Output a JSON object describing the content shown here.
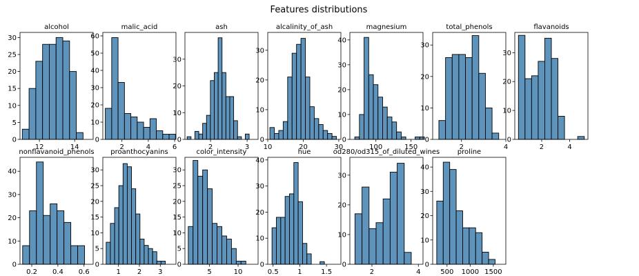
{
  "figure": {
    "suptitle": "Features distributions"
  },
  "style": {
    "bar_fill": "#4c87b5",
    "bar_edge": "#000000",
    "axis_color": "#000000"
  },
  "chart_data": [
    {
      "type": "bar",
      "title": "alcohol",
      "xlim": [
        10.9,
        15.05
      ],
      "ylim": [
        0,
        31.5
      ],
      "xticks": [
        12,
        14
      ],
      "yticks": [
        0,
        5,
        10,
        15,
        20,
        25,
        30
      ],
      "bin_start": 11.03,
      "bin_width": 0.383,
      "values": [
        3,
        15,
        23,
        28,
        28,
        30,
        29,
        20,
        2
      ]
    },
    {
      "type": "bar",
      "title": "malic_acid",
      "xlim": [
        0.55,
        6.1
      ],
      "ylim": [
        0,
        62
      ],
      "xticks": [
        2,
        4,
        6
      ],
      "yticks": [
        0,
        10,
        20,
        30,
        40,
        50,
        60
      ],
      "bin_start": 0.74,
      "bin_width": 0.484,
      "values": [
        18,
        59,
        33,
        15,
        13,
        10,
        7,
        12,
        5,
        3,
        3
      ]
    },
    {
      "type": "bar",
      "title": "ash",
      "xlim": [
        1.3,
        3.3
      ],
      "ylim": [
        0,
        40
      ],
      "xticks": [
        2,
        3
      ],
      "yticks": [
        0,
        10,
        20,
        30
      ],
      "bin_start": 1.36,
      "bin_width": 0.106,
      "values": [
        1,
        0,
        3,
        2,
        6,
        9,
        22,
        25,
        38,
        25,
        16,
        16,
        7,
        1,
        0,
        2
      ]
    },
    {
      "type": "bar",
      "title": "alcalinity_of_ash",
      "xlim": [
        10.0,
        30.6
      ],
      "ylim": [
        0,
        36
      ],
      "xticks": [
        10,
        20,
        30
      ],
      "yticks": [
        0,
        10,
        20,
        30
      ],
      "bin_start": 10.6,
      "bin_width": 1.25,
      "values": [
        4,
        2,
        3,
        6,
        21,
        29,
        32,
        34,
        21,
        11,
        7,
        5,
        3,
        2,
        1
      ]
    },
    {
      "type": "bar",
      "title": "magnesium",
      "xlim": [
        63,
        167
      ],
      "ylim": [
        0,
        43
      ],
      "xticks": [
        100,
        150
      ],
      "yticks": [
        0,
        10,
        20,
        30,
        40
      ],
      "bin_start": 70,
      "bin_width": 6.6,
      "values": [
        1,
        10,
        41,
        26,
        22,
        17,
        13,
        9,
        7,
        3,
        1,
        0,
        0,
        1,
        1
      ]
    },
    {
      "type": "bar",
      "title": "total_phenols",
      "xlim": [
        0.7,
        4.0
      ],
      "ylim": [
        0,
        34
      ],
      "xticks": [
        2,
        4
      ],
      "yticks": [
        0,
        10,
        20,
        30
      ],
      "bin_start": 0.98,
      "bin_width": 0.3,
      "values": [
        6,
        26,
        27,
        27,
        26,
        33,
        21,
        10,
        2
      ]
    },
    {
      "type": "bar",
      "title": "flavanoids",
      "xlim": [
        0.08,
        5.3
      ],
      "ylim": [
        0,
        37
      ],
      "xticks": [
        2,
        4
      ],
      "yticks": [
        0,
        10,
        20,
        30
      ],
      "bin_start": 0.34,
      "bin_width": 0.47,
      "values": [
        36,
        21,
        22,
        27,
        35,
        28,
        8,
        0,
        0,
        1
      ]
    },
    {
      "type": "bar",
      "title": "nonflavanoid_phenols",
      "xlim": [
        0.11,
        0.67
      ],
      "ylim": [
        0,
        46
      ],
      "xticks": [
        0.2,
        0.4,
        0.6
      ],
      "yticks": [
        0,
        10,
        20,
        30,
        40
      ],
      "bin_start": 0.13,
      "bin_width": 0.0527,
      "values": [
        8,
        23,
        44,
        21,
        26,
        23,
        18,
        8,
        8
      ]
    },
    {
      "type": "bar",
      "title": "proanthocyanins",
      "xlim": [
        0.25,
        3.75
      ],
      "ylim": [
        0,
        34
      ],
      "xticks": [
        1,
        2,
        3
      ],
      "yticks": [
        0,
        5,
        10,
        15,
        20,
        25,
        30
      ],
      "bin_start": 0.41,
      "bin_width": 0.202,
      "values": [
        7,
        13,
        18,
        25,
        32,
        31,
        24,
        16,
        8,
        6,
        5,
        4,
        1,
        1
      ]
    },
    {
      "type": "bar",
      "title": "color_intensity",
      "xlim": [
        0.7,
        13.5
      ],
      "ylim": [
        0,
        34
      ],
      "xticks": [
        5,
        10
      ],
      "yticks": [
        0,
        5,
        10,
        15,
        20,
        25,
        30
      ],
      "bin_start": 1.28,
      "bin_width": 0.84,
      "values": [
        12,
        33,
        28,
        30,
        24,
        13,
        12,
        9,
        8,
        5,
        1,
        1
      ]
    },
    {
      "type": "bar",
      "title": "hue",
      "xlim": [
        0.4,
        1.77
      ],
      "ylim": [
        0,
        41
      ],
      "xticks": [
        0.5,
        1.0,
        1.5
      ],
      "yticks": [
        0,
        10,
        20,
        30,
        40
      ],
      "bin_start": 0.48,
      "bin_width": 0.0817,
      "values": [
        14,
        18,
        18,
        26,
        27,
        39,
        24,
        8,
        4,
        0,
        0,
        1
      ]
    },
    {
      "type": "bar",
      "title": "od280/od315_of_diluted_wines",
      "xlim": [
        1.05,
        4.2
      ],
      "ylim": [
        0,
        36
      ],
      "xticks": [
        2,
        4
      ],
      "yticks": [
        0,
        10,
        20,
        30
      ],
      "bin_start": 1.27,
      "bin_width": 0.303,
      "values": [
        17,
        26,
        12,
        14,
        22,
        31,
        34,
        4
      ]
    },
    {
      "type": "bar",
      "title": "proline",
      "xlim": [
        190,
        1770
      ],
      "ylim": [
        0,
        44
      ],
      "xticks": [
        500,
        1000,
        1500
      ],
      "yticks": [
        0,
        10,
        20,
        30,
        40
      ],
      "bin_start": 278,
      "bin_width": 140,
      "values": [
        26,
        42,
        39,
        22,
        15,
        15,
        13,
        5,
        2
      ]
    }
  ]
}
